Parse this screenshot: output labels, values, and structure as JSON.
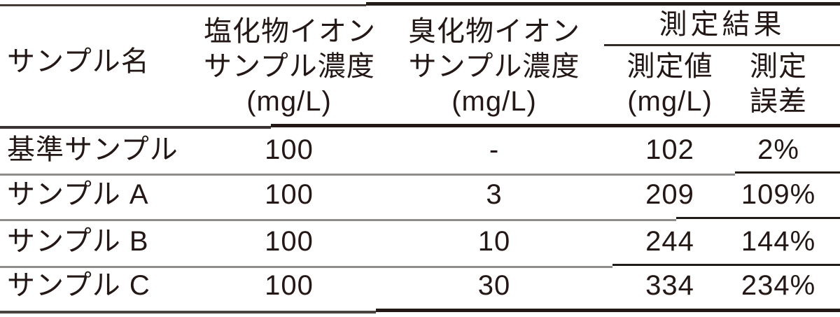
{
  "colors": {
    "text": "#231815",
    "rule_dark": "#231815",
    "rule_gray": "#8f8c8c",
    "background": "#ffffff"
  },
  "table": {
    "header": {
      "sample_name": "サンプル名",
      "chloride_lines": [
        "塩化物イオン",
        "サンプル濃度",
        "(mg/L)"
      ],
      "bromide_lines": [
        "臭化物イオン",
        "サンプル濃度",
        "(mg/L)"
      ],
      "result_group": "測定結果",
      "measured_lines": [
        "測定値",
        "(mg/L)"
      ],
      "error_lines": [
        "測定",
        "誤差"
      ]
    },
    "rows": [
      {
        "name": "基準サンプル",
        "chloride_conc": "100",
        "bromide_conc": "-",
        "measured_value": "102",
        "error": "2%"
      },
      {
        "name": "サンプル A",
        "chloride_conc": "100",
        "bromide_conc": "3",
        "measured_value": "209",
        "error": "109%"
      },
      {
        "name": "サンプル B",
        "chloride_conc": "100",
        "bromide_conc": "10",
        "measured_value": "244",
        "error": "144%"
      },
      {
        "name": "サンプル C",
        "chloride_conc": "100",
        "bromide_conc": "30",
        "measured_value": "334",
        "error": "234%"
      }
    ]
  },
  "chart_data": {
    "type": "table",
    "title": "",
    "columns": [
      "サンプル名",
      "塩化物イオン サンプル濃度 (mg/L)",
      "臭化物イオン サンプル濃度 (mg/L)",
      "測定結果 測定値 (mg/L)",
      "測定結果 測定誤差"
    ],
    "rows": [
      [
        "基準サンプル",
        "100",
        "-",
        "102",
        "2%"
      ],
      [
        "サンプル A",
        "100",
        "3",
        "209",
        "109%"
      ],
      [
        "サンプル B",
        "100",
        "10",
        "244",
        "144%"
      ],
      [
        "サンプル C",
        "100",
        "30",
        "334",
        "234%"
      ]
    ]
  }
}
